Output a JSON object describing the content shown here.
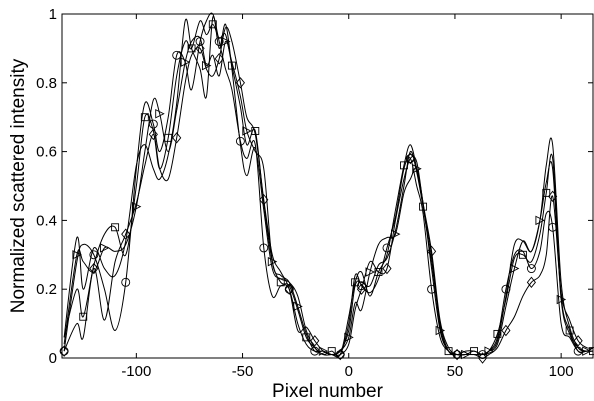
{
  "chart_data": {
    "type": "line",
    "xlabel": "Pixel number",
    "ylabel": "Normalized scattered intensity",
    "xlim": [
      -135,
      115
    ],
    "ylim": [
      0,
      1
    ],
    "x_ticks": [
      -100,
      -50,
      0,
      50,
      100
    ],
    "x_tick_labels": [
      "-100",
      "-50",
      "0",
      "50",
      "100"
    ],
    "y_ticks": [
      0,
      0.2,
      0.4,
      0.6,
      0.8,
      1
    ],
    "y_tick_labels": [
      "0",
      "0.2",
      "0.4",
      "0.6",
      "0.8",
      "1"
    ],
    "grid": false,
    "legend": "none",
    "series": [
      {
        "marker": "circle",
        "x": [
          -134,
          -128,
          -125,
          -120,
          -115,
          -110,
          -105,
          -100,
          -96,
          -92,
          -89,
          -85,
          -81,
          -77,
          -74,
          -70,
          -67,
          -64,
          -61,
          -58,
          -55,
          -51,
          -48,
          -44,
          -40,
          -36,
          -32,
          -28,
          -24,
          -20,
          -16,
          -12,
          -8,
          -4,
          0,
          3,
          6,
          10,
          14,
          18,
          22,
          26,
          29,
          32,
          35,
          39,
          43,
          47,
          51,
          55,
          59,
          63,
          66,
          70,
          74,
          78,
          82,
          86,
          90,
          93,
          96,
          100,
          104,
          108,
          112,
          115
        ],
        "y": [
          0.02,
          0.28,
          0.33,
          0.3,
          0.2,
          0.08,
          0.22,
          0.55,
          0.74,
          0.68,
          0.6,
          0.7,
          0.88,
          0.86,
          0.78,
          0.92,
          0.98,
          1.0,
          0.92,
          0.84,
          0.78,
          0.63,
          0.58,
          0.62,
          0.32,
          0.18,
          0.21,
          0.2,
          0.1,
          0.04,
          0.02,
          0.02,
          0.01,
          0.01,
          0.1,
          0.24,
          0.21,
          0.19,
          0.23,
          0.32,
          0.41,
          0.55,
          0.58,
          0.5,
          0.42,
          0.2,
          0.06,
          0.02,
          0.01,
          0.01,
          0.02,
          0.01,
          0.02,
          0.06,
          0.2,
          0.3,
          0.31,
          0.26,
          0.31,
          0.42,
          0.38,
          0.1,
          0.06,
          0.02,
          0.02,
          0.03
        ]
      },
      {
        "marker": "square",
        "x": [
          -134,
          -128,
          -125,
          -120,
          -115,
          -110,
          -105,
          -100,
          -96,
          -92,
          -89,
          -85,
          -81,
          -77,
          -74,
          -70,
          -67,
          -64,
          -61,
          -58,
          -55,
          -51,
          -48,
          -44,
          -40,
          -36,
          -32,
          -28,
          -24,
          -20,
          -16,
          -12,
          -8,
          -4,
          0,
          3,
          6,
          10,
          14,
          18,
          22,
          26,
          29,
          32,
          35,
          39,
          43,
          47,
          51,
          55,
          59,
          63,
          66,
          70,
          74,
          78,
          82,
          86,
          90,
          93,
          96,
          100,
          104,
          108,
          112,
          115
        ],
        "y": [
          0.06,
          0.2,
          0.12,
          0.27,
          0.36,
          0.38,
          0.3,
          0.5,
          0.7,
          0.66,
          0.55,
          0.64,
          0.82,
          0.92,
          0.9,
          0.98,
          0.94,
          0.97,
          0.93,
          0.94,
          0.85,
          0.73,
          0.62,
          0.66,
          0.45,
          0.28,
          0.22,
          0.21,
          0.14,
          0.06,
          0.03,
          0.01,
          0.02,
          0.01,
          0.12,
          0.22,
          0.25,
          0.18,
          0.25,
          0.3,
          0.43,
          0.56,
          0.62,
          0.55,
          0.44,
          0.28,
          0.1,
          0.02,
          0.01,
          0.02,
          0.02,
          0.01,
          0.02,
          0.07,
          0.17,
          0.29,
          0.3,
          0.28,
          0.36,
          0.48,
          0.58,
          0.18,
          0.08,
          0.02,
          0.02,
          0.02
        ]
      },
      {
        "marker": "triangle-right",
        "x": [
          -134,
          -128,
          -125,
          -120,
          -115,
          -110,
          -105,
          -100,
          -96,
          -92,
          -89,
          -85,
          -81,
          -77,
          -74,
          -70,
          -67,
          -64,
          -61,
          -58,
          -55,
          -51,
          -48,
          -44,
          -40,
          -36,
          -32,
          -28,
          -24,
          -20,
          -16,
          -12,
          -8,
          -4,
          0,
          3,
          6,
          10,
          14,
          18,
          22,
          26,
          29,
          32,
          35,
          39,
          43,
          47,
          51,
          55,
          59,
          63,
          66,
          70,
          74,
          78,
          82,
          86,
          90,
          93,
          96,
          100,
          104,
          108,
          112,
          115
        ],
        "y": [
          0.04,
          0.3,
          0.28,
          0.25,
          0.32,
          0.31,
          0.33,
          0.44,
          0.6,
          0.75,
          0.71,
          0.6,
          0.72,
          0.86,
          0.92,
          0.93,
          0.85,
          0.88,
          0.82,
          0.92,
          0.86,
          0.76,
          0.66,
          0.6,
          0.55,
          0.28,
          0.24,
          0.22,
          0.15,
          0.07,
          0.02,
          0.02,
          0.01,
          0.02,
          0.06,
          0.16,
          0.14,
          0.25,
          0.33,
          0.35,
          0.36,
          0.48,
          0.52,
          0.55,
          0.45,
          0.26,
          0.08,
          0.02,
          0.01,
          0.01,
          0.01,
          0.01,
          0.02,
          0.04,
          0.15,
          0.26,
          0.34,
          0.31,
          0.4,
          0.51,
          0.55,
          0.17,
          0.07,
          0.03,
          0.02,
          0.02
        ]
      },
      {
        "marker": "diamond",
        "x": [
          -134,
          -128,
          -125,
          -120,
          -115,
          -110,
          -105,
          -100,
          -96,
          -92,
          -89,
          -85,
          -81,
          -77,
          -74,
          -70,
          -67,
          -64,
          -61,
          -58,
          -55,
          -51,
          -48,
          -44,
          -40,
          -36,
          -32,
          -28,
          -24,
          -20,
          -16,
          -12,
          -8,
          -4,
          0,
          3,
          6,
          10,
          14,
          18,
          22,
          26,
          29,
          32,
          35,
          39,
          43,
          47,
          51,
          55,
          59,
          63,
          66,
          70,
          74,
          78,
          82,
          86,
          90,
          93,
          96,
          100,
          104,
          108,
          112,
          115
        ],
        "y": [
          0.02,
          0.1,
          0.06,
          0.26,
          0.11,
          0.28,
          0.36,
          0.45,
          0.56,
          0.65,
          0.55,
          0.52,
          0.64,
          0.8,
          0.88,
          0.9,
          0.84,
          0.82,
          0.87,
          0.96,
          0.92,
          0.8,
          0.7,
          0.65,
          0.46,
          0.3,
          0.25,
          0.2,
          0.08,
          0.09,
          0.05,
          0.02,
          0.01,
          0.01,
          0.04,
          0.14,
          0.2,
          0.28,
          0.25,
          0.26,
          0.4,
          0.52,
          0.58,
          0.57,
          0.45,
          0.31,
          0.11,
          0.03,
          0.01,
          0.01,
          0.01,
          0.0,
          0.01,
          0.03,
          0.08,
          0.12,
          0.18,
          0.22,
          0.24,
          0.3,
          0.47,
          0.19,
          0.11,
          0.05,
          0.03,
          0.03
        ]
      },
      {
        "marker": "none",
        "x": [
          -134,
          -128,
          -125,
          -120,
          -115,
          -110,
          -105,
          -100,
          -96,
          -92,
          -89,
          -85,
          -81,
          -77,
          -74,
          -70,
          -67,
          -64,
          -61,
          -58,
          -55,
          -51,
          -48,
          -44,
          -40,
          -36,
          -32,
          -28,
          -24,
          -20,
          -16,
          -12,
          -8,
          -4,
          0,
          3,
          6,
          10,
          14,
          18,
          22,
          26,
          29,
          32,
          35,
          39,
          43,
          47,
          51,
          55,
          59,
          63,
          66,
          70,
          74,
          78,
          82,
          86,
          90,
          93,
          96,
          100,
          104,
          108,
          112,
          115
        ],
        "y": [
          0.06,
          0.35,
          0.2,
          0.32,
          0.26,
          0.24,
          0.34,
          0.56,
          0.62,
          0.55,
          0.52,
          0.59,
          0.74,
          0.98,
          0.9,
          0.84,
          0.76,
          0.99,
          0.9,
          0.97,
          0.84,
          0.62,
          0.53,
          0.61,
          0.43,
          0.26,
          0.23,
          0.22,
          0.18,
          0.08,
          0.03,
          0.01,
          0.01,
          0.02,
          0.08,
          0.21,
          0.22,
          0.21,
          0.27,
          0.29,
          0.37,
          0.5,
          0.6,
          0.54,
          0.44,
          0.3,
          0.09,
          0.02,
          0.01,
          0.01,
          0.01,
          0.01,
          0.02,
          0.05,
          0.18,
          0.33,
          0.34,
          0.31,
          0.4,
          0.56,
          0.62,
          0.22,
          0.09,
          0.03,
          0.02,
          0.03
        ]
      }
    ]
  }
}
